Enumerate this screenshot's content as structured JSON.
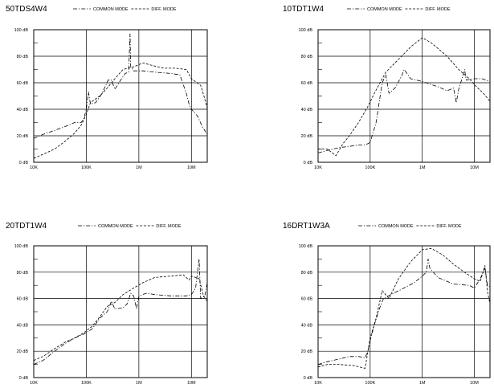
{
  "chart_data": [
    {
      "type": "line",
      "title": "50TDS4W4",
      "x_scale": "log",
      "xlim": [
        10000,
        20000000
      ],
      "ylim": [
        0,
        100
      ],
      "x_ticks": [
        "10K",
        "100K",
        "1M",
        "10M"
      ],
      "y_ticks": [
        "0 dB",
        "20 dB",
        "40 dB",
        "60 dB",
        "80 dB",
        "100 dB"
      ],
      "legend": [
        "COMMON MODE",
        "DIFF. MODE"
      ],
      "series": [
        {
          "name": "COMMON MODE",
          "style": "dashdot",
          "points": [
            [
              10000,
              18
            ],
            [
              15000,
              21
            ],
            [
              25000,
              24
            ],
            [
              40000,
              27
            ],
            [
              60000,
              30
            ],
            [
              80000,
              30
            ],
            [
              90000,
              33
            ],
            [
              100000,
              40
            ],
            [
              110000,
              53
            ],
            [
              120000,
              44
            ],
            [
              150000,
              45
            ],
            [
              200000,
              52
            ],
            [
              260000,
              62
            ],
            [
              300000,
              62
            ],
            [
              350000,
              55
            ],
            [
              450000,
              62
            ],
            [
              550000,
              67
            ],
            [
              640000,
              68
            ],
            [
              680000,
              97
            ],
            [
              700000,
              72
            ],
            [
              800000,
              69
            ],
            [
              1200000,
              69
            ],
            [
              2000000,
              68
            ],
            [
              4000000,
              67
            ],
            [
              6000000,
              66
            ],
            [
              8000000,
              52
            ],
            [
              9000000,
              44
            ],
            [
              10000000,
              40
            ],
            [
              13000000,
              35
            ],
            [
              16000000,
              27
            ],
            [
              20000000,
              21
            ]
          ]
        },
        {
          "name": "DIFF. MODE",
          "style": "dashed",
          "points": [
            [
              10000,
              3
            ],
            [
              15000,
              6
            ],
            [
              25000,
              10
            ],
            [
              40000,
              16
            ],
            [
              60000,
              22
            ],
            [
              80000,
              28
            ],
            [
              100000,
              36
            ],
            [
              120000,
              45
            ],
            [
              180000,
              50
            ],
            [
              250000,
              56
            ],
            [
              350000,
              63
            ],
            [
              500000,
              70
            ],
            [
              800000,
              72
            ],
            [
              1200000,
              75
            ],
            [
              1800000,
              73
            ],
            [
              3000000,
              71
            ],
            [
              5000000,
              71
            ],
            [
              8000000,
              70
            ],
            [
              10000000,
              63
            ],
            [
              15000000,
              58
            ],
            [
              17000000,
              51
            ],
            [
              20000000,
              41
            ]
          ]
        }
      ]
    },
    {
      "type": "line",
      "title": "10TDT1W4",
      "x_scale": "log",
      "xlim": [
        10000,
        20000000
      ],
      "ylim": [
        0,
        100
      ],
      "x_ticks": [
        "10K",
        "100K",
        "1M",
        "10M"
      ],
      "y_ticks": [
        "0 dB",
        "20 dB",
        "40 dB",
        "60 dB",
        "80 dB",
        "100 dB"
      ],
      "legend": [
        "COMMON MODE",
        "DIFF. MODE"
      ],
      "series": [
        {
          "name": "COMMON MODE",
          "style": "dashdot",
          "points": [
            [
              10000,
              7
            ],
            [
              15000,
              9
            ],
            [
              25000,
              11
            ],
            [
              40000,
              12
            ],
            [
              60000,
              13
            ],
            [
              80000,
              13
            ],
            [
              100000,
              15
            ],
            [
              130000,
              30
            ],
            [
              170000,
              60
            ],
            [
              200000,
              66
            ],
            [
              230000,
              52
            ],
            [
              300000,
              56
            ],
            [
              400000,
              65
            ],
            [
              450000,
              70
            ],
            [
              600000,
              63
            ],
            [
              1000000,
              61
            ],
            [
              2000000,
              57
            ],
            [
              3000000,
              54
            ],
            [
              4000000,
              56
            ],
            [
              4500000,
              45
            ],
            [
              5000000,
              55
            ],
            [
              6000000,
              65
            ],
            [
              6500000,
              70
            ],
            [
              7000000,
              62
            ],
            [
              10000000,
              63
            ],
            [
              14000000,
              63
            ],
            [
              20000000,
              61
            ]
          ]
        },
        {
          "name": "DIFF. MODE",
          "style": "dashed",
          "points": [
            [
              10000,
              10
            ],
            [
              15000,
              10
            ],
            [
              22000,
              5
            ],
            [
              30000,
              14
            ],
            [
              40000,
              20
            ],
            [
              60000,
              30
            ],
            [
              90000,
              42
            ],
            [
              120000,
              52
            ],
            [
              200000,
              68
            ],
            [
              300000,
              75
            ],
            [
              600000,
              87
            ],
            [
              1000000,
              94
            ],
            [
              1500000,
              90
            ],
            [
              3000000,
              80
            ],
            [
              5000000,
              70
            ],
            [
              8000000,
              63
            ],
            [
              11000000,
              57
            ],
            [
              15000000,
              52
            ],
            [
              20000000,
              46
            ]
          ]
        }
      ]
    },
    {
      "type": "line",
      "title": "20TDT1W4",
      "x_scale": "log",
      "xlim": [
        10000,
        20000000
      ],
      "ylim": [
        0,
        100
      ],
      "x_ticks": [
        "10K",
        "100K",
        "1M",
        "10M"
      ],
      "y_ticks": [
        "0 dB",
        "20 dB",
        "40 dB",
        "60 dB",
        "80 dB",
        "100 dB"
      ],
      "legend": [
        "COMMON MODE",
        "DIFF. MODE"
      ],
      "series": [
        {
          "name": "COMMON MODE",
          "style": "dashdot",
          "points": [
            [
              10000,
              10
            ],
            [
              15000,
              13
            ],
            [
              25000,
              20
            ],
            [
              40000,
              26
            ],
            [
              60000,
              30
            ],
            [
              90000,
              33
            ],
            [
              130000,
              37
            ],
            [
              180000,
              45
            ],
            [
              250000,
              50
            ],
            [
              300000,
              58
            ],
            [
              350000,
              52
            ],
            [
              500000,
              53
            ],
            [
              600000,
              56
            ],
            [
              700000,
              64
            ],
            [
              800000,
              62
            ],
            [
              900000,
              52
            ],
            [
              1000000,
              62
            ],
            [
              1400000,
              64
            ],
            [
              2000000,
              63
            ],
            [
              4000000,
              62
            ],
            [
              8000000,
              62
            ],
            [
              10000000,
              63
            ],
            [
              12000000,
              68
            ],
            [
              14000000,
              90
            ],
            [
              15000000,
              60
            ],
            [
              18000000,
              62
            ],
            [
              20000000,
              72
            ]
          ]
        },
        {
          "name": "DIFF. MODE",
          "style": "dashed",
          "points": [
            [
              10000,
              13
            ],
            [
              15000,
              16
            ],
            [
              25000,
              22
            ],
            [
              40000,
              27
            ],
            [
              60000,
              30
            ],
            [
              90000,
              34
            ],
            [
              130000,
              39
            ],
            [
              180000,
              46
            ],
            [
              250000,
              54
            ],
            [
              350000,
              57
            ],
            [
              500000,
              63
            ],
            [
              800000,
              68
            ],
            [
              1200000,
              72
            ],
            [
              2000000,
              76
            ],
            [
              4000000,
              77
            ],
            [
              7000000,
              78
            ],
            [
              9000000,
              74
            ],
            [
              10000000,
              77
            ],
            [
              12000000,
              76
            ],
            [
              14000000,
              75
            ],
            [
              17000000,
              62
            ],
            [
              20000000,
              58
            ]
          ]
        }
      ]
    },
    {
      "type": "line",
      "title": "16DRT1W3A",
      "x_scale": "log",
      "xlim": [
        10000,
        20000000
      ],
      "ylim": [
        0,
        100
      ],
      "x_ticks": [
        "10K",
        "100K",
        "1M",
        "10M"
      ],
      "y_ticks": [
        "0 dB",
        "20 dB",
        "40 dB",
        "60 dB",
        "80 dB",
        "100 dB"
      ],
      "legend": [
        "COMMON MODE",
        "DIFF. MODE"
      ],
      "series": [
        {
          "name": "COMMON MODE",
          "style": "dashdot",
          "points": [
            [
              10000,
              10
            ],
            [
              15000,
              12
            ],
            [
              25000,
              14
            ],
            [
              40000,
              16
            ],
            [
              60000,
              16
            ],
            [
              80000,
              15
            ],
            [
              90000,
              20
            ],
            [
              100000,
              28
            ],
            [
              120000,
              40
            ],
            [
              150000,
              52
            ],
            [
              180000,
              60
            ],
            [
              250000,
              63
            ],
            [
              400000,
              67
            ],
            [
              700000,
              72
            ],
            [
              1000000,
              77
            ],
            [
              1200000,
              80
            ],
            [
              1300000,
              90
            ],
            [
              1400000,
              83
            ],
            [
              2000000,
              76
            ],
            [
              4000000,
              71
            ],
            [
              8000000,
              70
            ],
            [
              10000000,
              68
            ],
            [
              13000000,
              75
            ],
            [
              16000000,
              83
            ],
            [
              18000000,
              70
            ],
            [
              20000000,
              69
            ]
          ]
        },
        {
          "name": "DIFF. MODE",
          "style": "dashed",
          "points": [
            [
              10000,
              8
            ],
            [
              15000,
              10
            ],
            [
              25000,
              10
            ],
            [
              50000,
              9
            ],
            [
              80000,
              7
            ],
            [
              100000,
              30
            ],
            [
              130000,
              45
            ],
            [
              170000,
              66
            ],
            [
              230000,
              60
            ],
            [
              350000,
              75
            ],
            [
              600000,
              88
            ],
            [
              1000000,
              97
            ],
            [
              1500000,
              98
            ],
            [
              2500000,
              93
            ],
            [
              4000000,
              86
            ],
            [
              7000000,
              79
            ],
            [
              10000000,
              75
            ],
            [
              13000000,
              73
            ],
            [
              16000000,
              85
            ],
            [
              18000000,
              65
            ],
            [
              20000000,
              56
            ]
          ]
        }
      ]
    }
  ]
}
